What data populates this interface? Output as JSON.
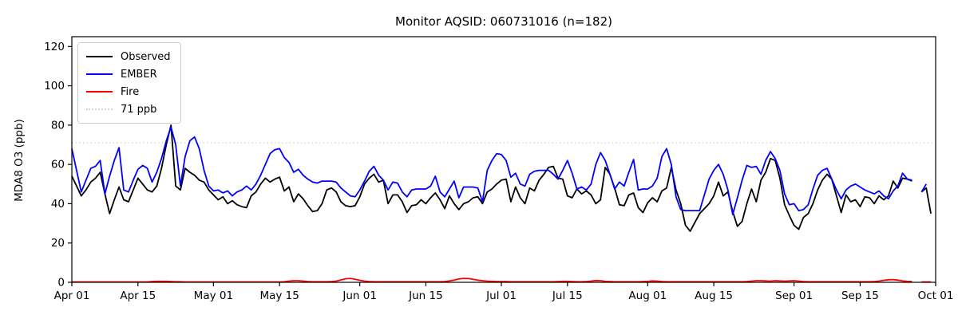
{
  "title": "Monitor AQSID: 060731016 (n=182)",
  "chart_data": {
    "type": "line",
    "title": "Monitor AQSID: 060731016 (n=182)",
    "xlabel": "",
    "ylabel": "MDA8 O3 (ppb)",
    "ylim": [
      0,
      125
    ],
    "yticks": [
      0,
      20,
      40,
      60,
      80,
      100,
      120
    ],
    "grid": false,
    "legend_position": "upper left",
    "x_start_label": "Apr 01",
    "x_end_label": "Oct 01",
    "x_total_days": 183,
    "x_tick_days": [
      0,
      14,
      30,
      44,
      61,
      75,
      91,
      105,
      122,
      136,
      153,
      167,
      183
    ],
    "x_tick_labels": [
      "Apr 01",
      "Apr 15",
      "May 01",
      "May 15",
      "Jun 01",
      "Jun 15",
      "Jul 01",
      "Jul 15",
      "Aug 01",
      "Aug 15",
      "Sep 01",
      "Sep 15",
      "Oct 01"
    ],
    "threshold": {
      "value": 71,
      "label": "71 ppb",
      "color": "#d3d3d3",
      "style": "dotted"
    },
    "series": [
      {
        "name": "Observed",
        "color": "#000000",
        "values": [
          54,
          49,
          44,
          47,
          51,
          53,
          56,
          45,
          35,
          42,
          48.5,
          42,
          41,
          47,
          53,
          50,
          47,
          46,
          49,
          58,
          70,
          80,
          49,
          47,
          58,
          56,
          54.5,
          52,
          51,
          47,
          44.5,
          42,
          43.5,
          40,
          41.5,
          39.5,
          38.5,
          38,
          44,
          46,
          50,
          53,
          51,
          52.5,
          53.5,
          46.5,
          48.5,
          41,
          45,
          42.5,
          39,
          36,
          36.5,
          40,
          47,
          48,
          46,
          41,
          39,
          38.5,
          39,
          43.5,
          50,
          53,
          55,
          51,
          52,
          40,
          44.5,
          44.5,
          41,
          35.5,
          39,
          39.5,
          42,
          40,
          43,
          45.5,
          42,
          37.5,
          44,
          40,
          37,
          40,
          41,
          43,
          43.5,
          40,
          46,
          47.5,
          50,
          52,
          52.5,
          41,
          48.5,
          43,
          40,
          48,
          46.5,
          52,
          55,
          58.5,
          59,
          53,
          52.5,
          44,
          43,
          47.5,
          45,
          46.5,
          44.5,
          40,
          42,
          58.5,
          55,
          48,
          39.5,
          39,
          44.5,
          45.5,
          38,
          35.5,
          40.5,
          43,
          41,
          46.5,
          48,
          58.5,
          47,
          40,
          29,
          26,
          30.5,
          35,
          37.5,
          40,
          44,
          51,
          44,
          46,
          36,
          28.5,
          31,
          40,
          47.5,
          41,
          52,
          56,
          63,
          62,
          53,
          39.5,
          34,
          29,
          27,
          33,
          35,
          40,
          47,
          52,
          55,
          52.5,
          44,
          35.5,
          44.5,
          41,
          42,
          38.5,
          43.5,
          43,
          40,
          44,
          42,
          44,
          51.5,
          48,
          53,
          52.5,
          51.5,
          null,
          46,
          48,
          35
        ]
      },
      {
        "name": "EMBER",
        "color": "#0000ff",
        "values": [
          68,
          57,
          46,
          52,
          58,
          59,
          62,
          45,
          54,
          62,
          68.5,
          47,
          46,
          52,
          57.5,
          59.5,
          58,
          51,
          56,
          63,
          72,
          79,
          70,
          49,
          64,
          72,
          74,
          68,
          57,
          49,
          46.5,
          47,
          45.5,
          46.5,
          44,
          46,
          47,
          49,
          47,
          50,
          54.5,
          60,
          65.5,
          67.5,
          68,
          63.5,
          61,
          56,
          57.5,
          54.5,
          52.5,
          51,
          50.5,
          51.5,
          51.5,
          51.5,
          51,
          48,
          46,
          44,
          43.5,
          47,
          51.5,
          56.5,
          59,
          54.5,
          52,
          47,
          51,
          50.5,
          46,
          43.5,
          47,
          47.5,
          47.5,
          47.5,
          49,
          54,
          46,
          43.5,
          47.5,
          51.5,
          43,
          48.5,
          48.5,
          48.5,
          48,
          41,
          57,
          62,
          65.5,
          65,
          62,
          53.5,
          55.5,
          50,
          49,
          55,
          56.5,
          57,
          57,
          57,
          55,
          52.5,
          57,
          62,
          55.5,
          47.5,
          48.5,
          47,
          50,
          60,
          66,
          62,
          55,
          47.5,
          51,
          49,
          56,
          62.5,
          47,
          47.5,
          47.5,
          49,
          53,
          64,
          68,
          60,
          43.5,
          37,
          36.5,
          36.5,
          36.5,
          36.5,
          44.5,
          52.5,
          57,
          60,
          55,
          47,
          34.5,
          43,
          52,
          59.5,
          58.5,
          59,
          55,
          62,
          66.5,
          63,
          57,
          45,
          39.5,
          40,
          36.5,
          37,
          39.5,
          47.5,
          54.5,
          57,
          58,
          52.5,
          47,
          42.5,
          47,
          49,
          50,
          48.5,
          47,
          46,
          45,
          46.5,
          44,
          42.5,
          46.5,
          49,
          55.5,
          52.5,
          52,
          null,
          46,
          50,
          null
        ]
      },
      {
        "name": "Fire",
        "color": "#ff0000",
        "values": [
          0.2,
          0.2,
          0.2,
          0.2,
          0.2,
          0.2,
          0.2,
          0.2,
          0.2,
          0.2,
          0.2,
          0.2,
          0.2,
          0.2,
          0.2,
          0.2,
          0.2,
          0.4,
          0.5,
          0.5,
          0.5,
          0.4,
          0.3,
          0.3,
          0.2,
          0.2,
          0.2,
          0.2,
          0.2,
          0.2,
          0.2,
          0.2,
          0.2,
          0.2,
          0.2,
          0.2,
          0.2,
          0.2,
          0.2,
          0.2,
          0.2,
          0.2,
          0.2,
          0.2,
          0.2,
          0.3,
          0.6,
          0.8,
          0.8,
          0.6,
          0.4,
          0.3,
          0.3,
          0.3,
          0.3,
          0.4,
          0.6,
          1.2,
          1.8,
          2.0,
          1.6,
          1.0,
          0.6,
          0.4,
          0.3,
          0.3,
          0.3,
          0.3,
          0.3,
          0.3,
          0.3,
          0.3,
          0.3,
          0.3,
          0.3,
          0.3,
          0.3,
          0.3,
          0.3,
          0.4,
          0.7,
          1.1,
          1.7,
          2.0,
          1.9,
          1.5,
          1.1,
          0.8,
          0.6,
          0.5,
          0.4,
          0.4,
          0.4,
          0.3,
          0.3,
          0.3,
          0.3,
          0.3,
          0.3,
          0.3,
          0.3,
          0.3,
          0.3,
          0.4,
          0.5,
          0.5,
          0.4,
          0.3,
          0.3,
          0.4,
          0.6,
          0.9,
          0.8,
          0.5,
          0.4,
          0.3,
          0.3,
          0.3,
          0.3,
          0.3,
          0.3,
          0.4,
          0.5,
          0.7,
          0.6,
          0.4,
          0.3,
          0.3,
          0.3,
          0.3,
          0.3,
          0.3,
          0.3,
          0.3,
          0.3,
          0.3,
          0.3,
          0.3,
          0.3,
          0.3,
          0.3,
          0.3,
          0.3,
          0.4,
          0.6,
          0.8,
          0.8,
          0.7,
          0.6,
          0.8,
          0.7,
          0.6,
          0.7,
          0.8,
          0.6,
          0.4,
          0.3,
          0.3,
          0.3,
          0.3,
          0.3,
          0.3,
          0.3,
          0.3,
          0.3,
          0.3,
          0.3,
          0.3,
          0.3,
          0.3,
          0.4,
          0.6,
          1.0,
          1.3,
          1.4,
          1.1,
          0.7,
          0.5,
          0.4,
          null,
          0.2,
          0.2,
          0.2
        ]
      }
    ]
  },
  "legend": {
    "items": [
      {
        "label": "Observed",
        "color": "#000000",
        "style": "solid"
      },
      {
        "label": "EMBER",
        "color": "#0000ff",
        "style": "solid"
      },
      {
        "label": "Fire",
        "color": "#ff0000",
        "style": "solid"
      },
      {
        "label": "71 ppb",
        "color": "#d3d3d3",
        "style": "dotted"
      }
    ]
  },
  "colors": {
    "observed": "#000000",
    "ember": "#0000ff",
    "fire": "#ff0000",
    "threshold": "#d3d3d3",
    "axis": "#000000",
    "background": "#ffffff"
  }
}
